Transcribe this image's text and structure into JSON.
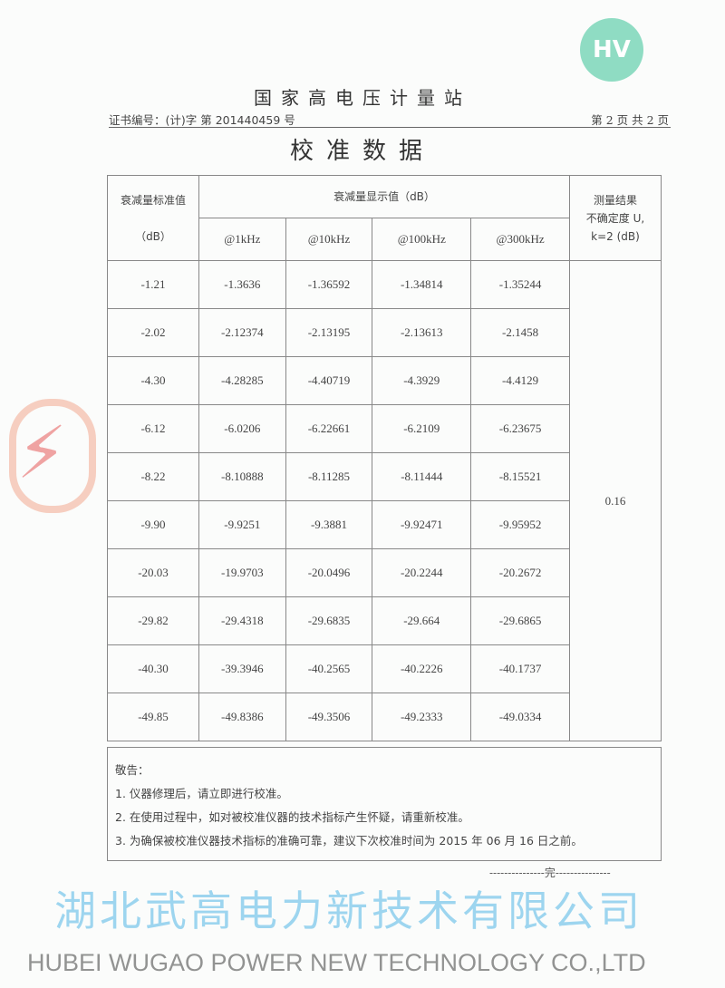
{
  "header": {
    "station": "国家高电压计量站",
    "certificate_no": "证书编号：(计)字 第 201440459 号",
    "page_info": "第 2 页 共 2 页",
    "title": "校准数据"
  },
  "table": {
    "col_std": "衰减量标准值",
    "col_std_unit": "（dB）",
    "col_display": "衰减量显示值（dB）",
    "col_uncertainty_1": "测量结果",
    "col_uncertainty_2": "不确定度 U,",
    "col_uncertainty_3": "k=2 (dB)",
    "freqs": [
      "@1kHz",
      "@10kHz",
      "@100kHz",
      "@300kHz"
    ],
    "uncertainty": "0.16",
    "rows": [
      [
        "-1.21",
        "-1.3636",
        "-1.36592",
        "-1.34814",
        "-1.35244"
      ],
      [
        "-2.02",
        "-2.12374",
        "-2.13195",
        "-2.13613",
        "-2.1458"
      ],
      [
        "-4.30",
        "-4.28285",
        "-4.40719",
        "-4.3929",
        "-4.4129"
      ],
      [
        "-6.12",
        "-6.0206",
        "-6.22661",
        "-6.2109",
        "-6.23675"
      ],
      [
        "-8.22",
        "-8.10888",
        "-8.11285",
        "-8.11444",
        "-8.15521"
      ],
      [
        "-9.90",
        "-9.9251",
        "-9.3881",
        "-9.92471",
        "-9.95952"
      ],
      [
        "-20.03",
        "-19.9703",
        "-20.0496",
        "-20.2244",
        "-20.2672"
      ],
      [
        "-29.82",
        "-29.4318",
        "-29.6835",
        "-29.664",
        "-29.6865"
      ],
      [
        "-40.30",
        "-39.3946",
        "-40.2565",
        "-40.2226",
        "-40.1737"
      ],
      [
        "-49.85",
        "-49.8386",
        "-49.3506",
        "-49.2333",
        "-49.0334"
      ]
    ]
  },
  "notice": {
    "title": "敬告：",
    "items": [
      "1. 仪器修理后，请立即进行校准。",
      "2. 在使用过程中，如对被校准仪器的技术指标产生怀疑，请重新校准。",
      "3. 为确保被校准仪器技术指标的准确可靠，建议下次校准时间为 2015 年 06 月 16 日之前。"
    ]
  },
  "end_mark": "---------------完---------------",
  "watermark": {
    "cn": "湖北武高电力新技术有限公司",
    "en": "HUBEI WUGAO POWER NEW TECHNOLOGY CO.,LTD",
    "logo": "HV"
  },
  "colors": {
    "watermark_cn": "#50b4e6",
    "logo": "#8fdcc3",
    "stamp": "#e65a5a"
  }
}
